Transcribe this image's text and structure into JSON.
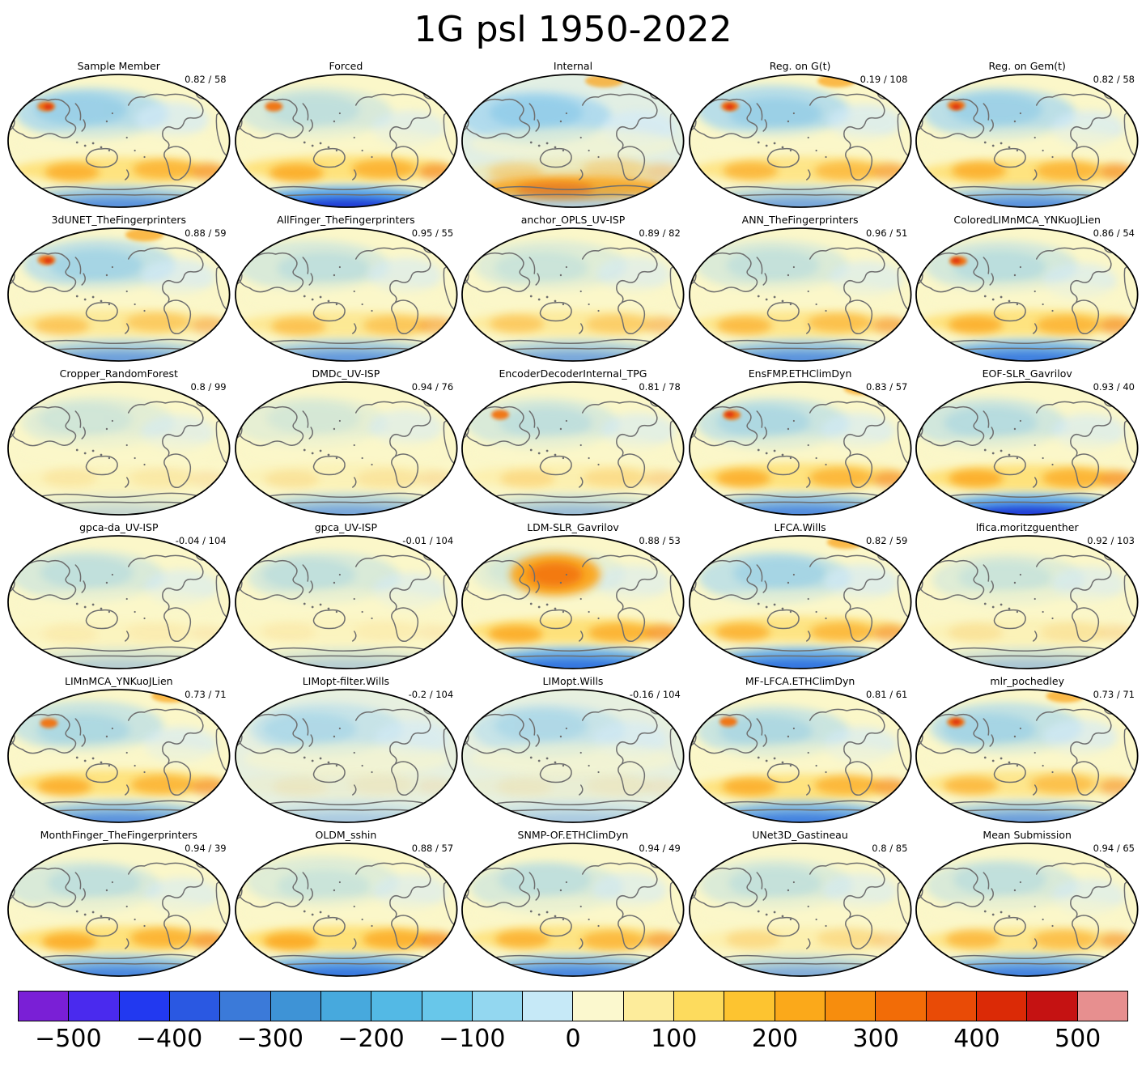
{
  "title": "1G psl 1950-2022",
  "panels": [
    {
      "title": "Sample Member",
      "score_text": "0.82 / 58"
    },
    {
      "title": "Forced",
      "score_text": ""
    },
    {
      "title": "Internal",
      "score_text": ""
    },
    {
      "title": "Reg. on G(t)",
      "score_text": "0.19 / 108"
    },
    {
      "title": "Reg. on Gem(t)",
      "score_text": "0.82 / 58"
    },
    {
      "title": "3dUNET_TheFingerprinters",
      "score_text": "0.88 / 59"
    },
    {
      "title": "AllFinger_TheFingerprinters",
      "score_text": "0.95 / 55"
    },
    {
      "title": "anchor_OPLS_UV-ISP",
      "score_text": "0.89 / 82"
    },
    {
      "title": "ANN_TheFingerprinters",
      "score_text": "0.96 / 51"
    },
    {
      "title": "ColoredLIMnMCA_YNKuoJLien",
      "score_text": "0.86 / 54"
    },
    {
      "title": "Cropper_RandomForest",
      "score_text": "0.8 / 99"
    },
    {
      "title": "DMDc_UV-ISP",
      "score_text": "0.94 / 76"
    },
    {
      "title": "EncoderDecoderInternal_TPG",
      "score_text": "0.81 / 78"
    },
    {
      "title": "EnsFMP.ETHClimDyn",
      "score_text": "0.83 / 57"
    },
    {
      "title": "EOF-SLR_Gavrilov",
      "score_text": "0.93 / 40"
    },
    {
      "title": "gpca-da_UV-ISP",
      "score_text": "-0.04 / 104"
    },
    {
      "title": "gpca_UV-ISP",
      "score_text": "-0.01 / 104"
    },
    {
      "title": "LDM-SLR_Gavrilov",
      "score_text": "0.88 / 53"
    },
    {
      "title": "LFCA.Wills",
      "score_text": "0.82 / 59"
    },
    {
      "title": "lfica.moritzguenther",
      "score_text": "0.92 / 103"
    },
    {
      "title": "LIMnMCA_YNKuoJLien",
      "score_text": "0.73 / 71"
    },
    {
      "title": "LIMopt-filter.Wills",
      "score_text": "-0.2 / 104"
    },
    {
      "title": "LIMopt.Wills",
      "score_text": "-0.16 / 104"
    },
    {
      "title": "MF-LFCA.ETHClimDyn",
      "score_text": "0.81 / 61"
    },
    {
      "title": "mlr_pochedley",
      "score_text": "0.73 / 71"
    },
    {
      "title": "MonthFinger_TheFingerprinters",
      "score_text": "0.94 / 39"
    },
    {
      "title": "OLDM_sshin",
      "score_text": "0.88 / 57"
    },
    {
      "title": "SNMP-OF.ETHClimDyn",
      "score_text": "0.94 / 49"
    },
    {
      "title": "UNet3D_Gastineau",
      "score_text": "0.8 / 85"
    },
    {
      "title": "Mean Submission",
      "score_text": "0.94 / 65"
    }
  ],
  "colorbar": {
    "vmin": -550,
    "vmax": 550,
    "ticks": [
      "−500",
      "−400",
      "−300",
      "−200",
      "−100",
      "0",
      "100",
      "200",
      "300",
      "400",
      "500"
    ],
    "colors": [
      "#7A1FD6",
      "#4A2AEE",
      "#2239F0",
      "#2A58E2",
      "#3B7AD9",
      "#3E93D6",
      "#47A9DD",
      "#53B9E5",
      "#68C7EA",
      "#93D7F0",
      "#C6E9F7",
      "#FBF8CE",
      "#FDEC9B",
      "#FDDB5D",
      "#FDC430",
      "#FBA91A",
      "#F78D0D",
      "#F26C07",
      "#E94B06",
      "#DB2A06",
      "#C51212",
      "#E78F8F"
    ]
  },
  "palette": {
    "base": "#FBF7C9",
    "yellow1": "#FEDE6E",
    "orange1": "#FBA51C",
    "orange2": "#F2720A",
    "red": "#DC2A0E",
    "blue1": "#D3EAF7",
    "blue2": "#A9D8EF",
    "blue3": "#7CC2E6",
    "blue4": "#5FA8E8",
    "blue5": "#2E6FDE",
    "blue6": "#2438D6",
    "coast": "#6E6E6E",
    "outline": "#000000"
  },
  "chart_data": {
    "type": "heatmap",
    "title": "1G psl 1950-2022",
    "layout": {
      "rows": 6,
      "cols": 5,
      "legend_position": "bottom"
    },
    "panel_titles": [
      "Sample Member",
      "Forced",
      "Internal",
      "Reg. on G(t)",
      "Reg. on Gem(t)",
      "3dUNET_TheFingerprinters",
      "AllFinger_TheFingerprinters",
      "anchor_OPLS_UV-ISP",
      "ANN_TheFingerprinters",
      "ColoredLIMnMCA_YNKuoJLien",
      "Cropper_RandomForest",
      "DMDc_UV-ISP",
      "EncoderDecoderInternal_TPG",
      "EnsFMP.ETHClimDyn",
      "EOF-SLR_Gavrilov",
      "gpca-da_UV-ISP",
      "gpca_UV-ISP",
      "LDM-SLR_Gavrilov",
      "LFCA.Wills",
      "lfica.moritzguenther",
      "LIMnMCA_YNKuoJLien",
      "LIMopt-filter.Wills",
      "LIMopt.Wills",
      "MF-LFCA.ETHClimDyn",
      "mlr_pochedley",
      "MonthFinger_TheFingerprinters",
      "OLDM_sshin",
      "SNMP-OF.ETHClimDyn",
      "UNet3D_Gastineau",
      "Mean Submission"
    ],
    "panel_annotations": [
      "0.82 / 58",
      "",
      "",
      "0.19 / 108",
      "0.82 / 58",
      "0.88 / 59",
      "0.95 / 55",
      "0.89 / 82",
      "0.96 / 51",
      "0.86 / 54",
      "0.8 / 99",
      "0.94 / 76",
      "0.81 / 78",
      "0.83 / 57",
      "0.93 / 40",
      "-0.04 / 104",
      "-0.01 / 104",
      "0.88 / 53",
      "0.82 / 59",
      "0.92 / 103",
      "0.73 / 71",
      "-0.2 / 104",
      "-0.16 / 104",
      "0.81 / 61",
      "0.73 / 71",
      "0.94 / 39",
      "0.88 / 57",
      "0.94 / 49",
      "0.8 / 85",
      "0.94 / 65"
    ],
    "colorbar_ticks": [
      -500,
      -400,
      -300,
      -200,
      -100,
      0,
      100,
      200,
      300,
      400,
      500
    ],
    "colorbar_range": [
      -550,
      550
    ]
  }
}
